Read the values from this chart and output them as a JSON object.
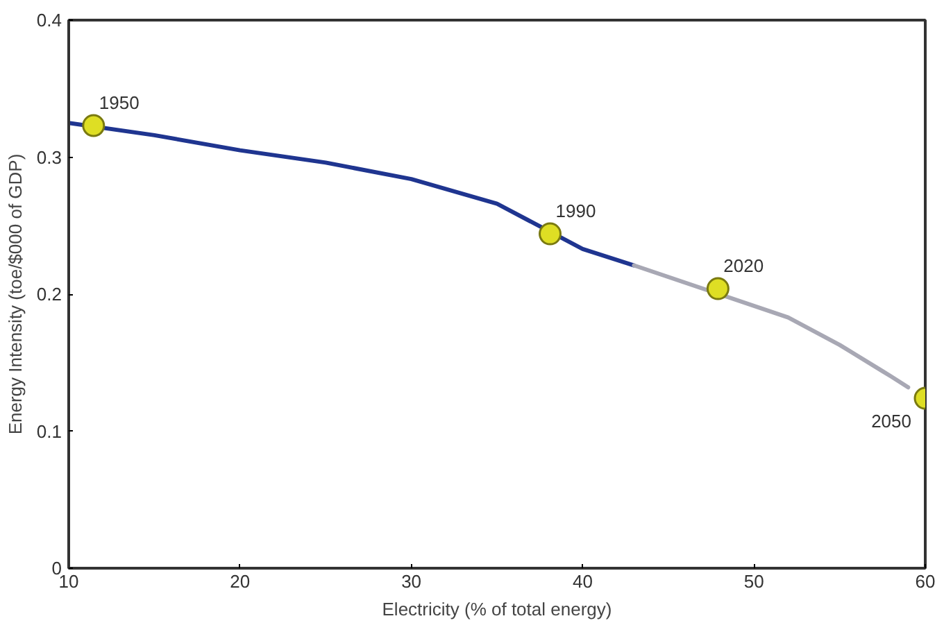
{
  "chart_data": {
    "type": "line",
    "xlabel": "Electricity (% of total energy)",
    "ylabel": "Energy Intensity (toe/$000 of GDP)",
    "xlim": [
      10,
      60
    ],
    "ylim": [
      0,
      0.4
    ],
    "xticks": [
      10,
      20,
      30,
      40,
      50,
      60
    ],
    "yticks": [
      0,
      0.1,
      0.2,
      0.3,
      0.4
    ],
    "grid": false,
    "series": [
      {
        "color": "#1f3590",
        "x": [
          10,
          15,
          20,
          25,
          30,
          35,
          40,
          43
        ],
        "values": [
          0.325,
          0.316,
          0.305,
          0.296,
          0.284,
          0.266,
          0.233,
          0.221
        ],
        "marker": "none"
      },
      {
        "color": "#a8a8b4",
        "x": [
          43,
          52,
          55,
          58,
          59
        ],
        "values": [
          0.221,
          0.183,
          0.163,
          0.14,
          0.132
        ],
        "marker": "none"
      },
      {
        "type": "scatter",
        "color": "#dede24",
        "x": [
          11.45,
          38.1,
          47.9,
          60
        ],
        "values": [
          0.323,
          0.244,
          0.204,
          0.124
        ],
        "marker": "circle"
      }
    ],
    "annotations": [
      {
        "text": "1950",
        "x": 11.45,
        "y": 0.323
      },
      {
        "text": "1990",
        "x": 38.1,
        "y": 0.244
      },
      {
        "text": "2020",
        "x": 47.9,
        "y": 0.204
      },
      {
        "text": "2050",
        "x": 60,
        "y": 0.124
      }
    ]
  }
}
